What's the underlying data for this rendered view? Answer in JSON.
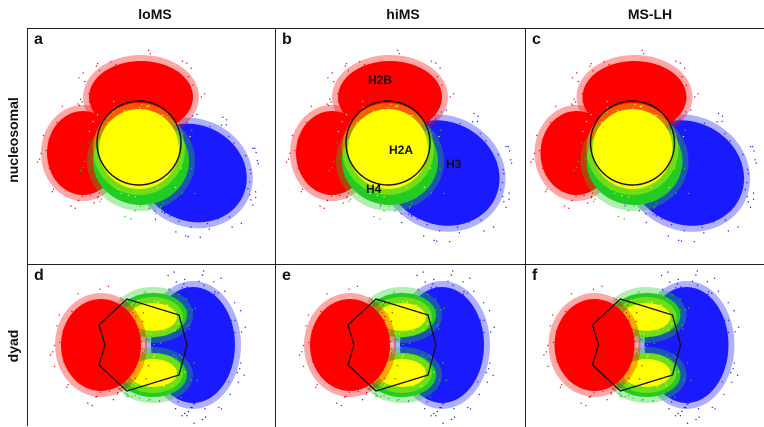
{
  "columns": [
    "loMS",
    "hiMS",
    "MS-LH"
  ],
  "rows": [
    "nucleosomal",
    "dyad"
  ],
  "panels": [
    {
      "label": "a",
      "row": 0,
      "col": 0
    },
    {
      "label": "b",
      "row": 0,
      "col": 1
    },
    {
      "label": "c",
      "row": 0,
      "col": 2
    },
    {
      "label": "d",
      "row": 1,
      "col": 0
    },
    {
      "label": "e",
      "row": 1,
      "col": 1
    },
    {
      "label": "f",
      "row": 1,
      "col": 2
    }
  ],
  "histone_labels": {
    "h2b": "H2B",
    "h2a": "H2A",
    "h3": "H3",
    "h4": "H4"
  },
  "colors": {
    "red": "#ff0000",
    "yellow": "#ffff00",
    "green": "#22cc22",
    "blue": "#1a1aff",
    "outline": "#111111"
  }
}
